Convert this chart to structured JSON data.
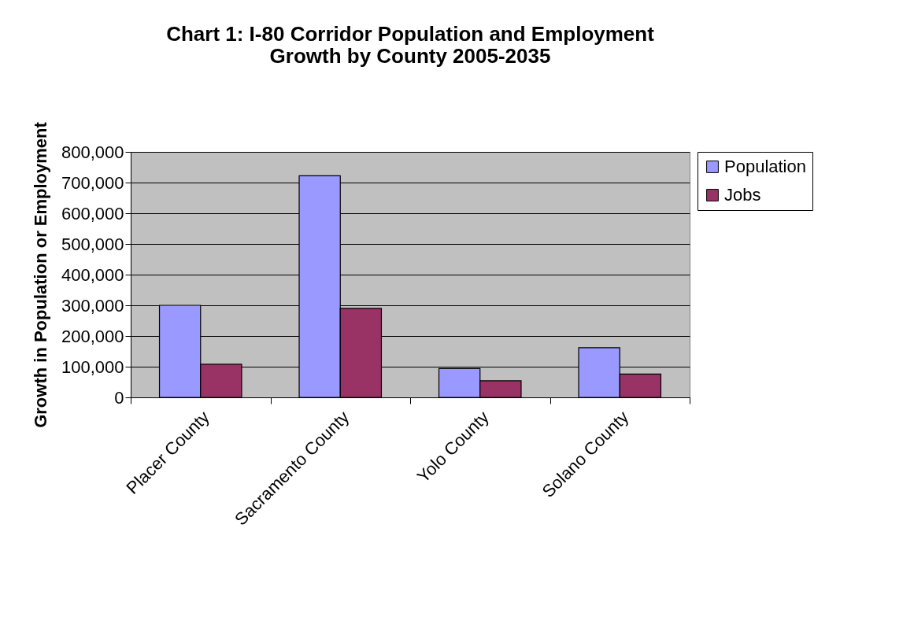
{
  "chart_data": {
    "type": "bar",
    "title": "Chart 1: I-80 Corridor Population and Employment Growth by County 2005-2035",
    "ylabel": "Growth in Population or Employment",
    "categories": [
      "Placer County",
      "Sacramento County",
      "Yolo County",
      "Solano County"
    ],
    "series": [
      {
        "name": "Population",
        "color": "#9999ff",
        "values": [
          300000,
          722000,
          94000,
          162000
        ]
      },
      {
        "name": "Jobs",
        "color": "#993366",
        "values": [
          108000,
          290000,
          54000,
          76000
        ]
      }
    ],
    "ylim": [
      0,
      800000
    ],
    "yticks": [
      0,
      {
        "value": 100000,
        "label": "100,000"
      },
      {
        "value": 200000,
        "label": "200,000"
      },
      {
        "value": 300000,
        "label": "300,000"
      },
      {
        "value": 400000,
        "label": "400,000"
      },
      {
        "value": 500000,
        "label": "500,000"
      },
      {
        "value": 600000,
        "label": "600,000"
      },
      {
        "value": 700000,
        "label": "700,000"
      },
      {
        "value": 800000,
        "label": "800,000"
      }
    ],
    "grid": "y",
    "legend": "right"
  }
}
